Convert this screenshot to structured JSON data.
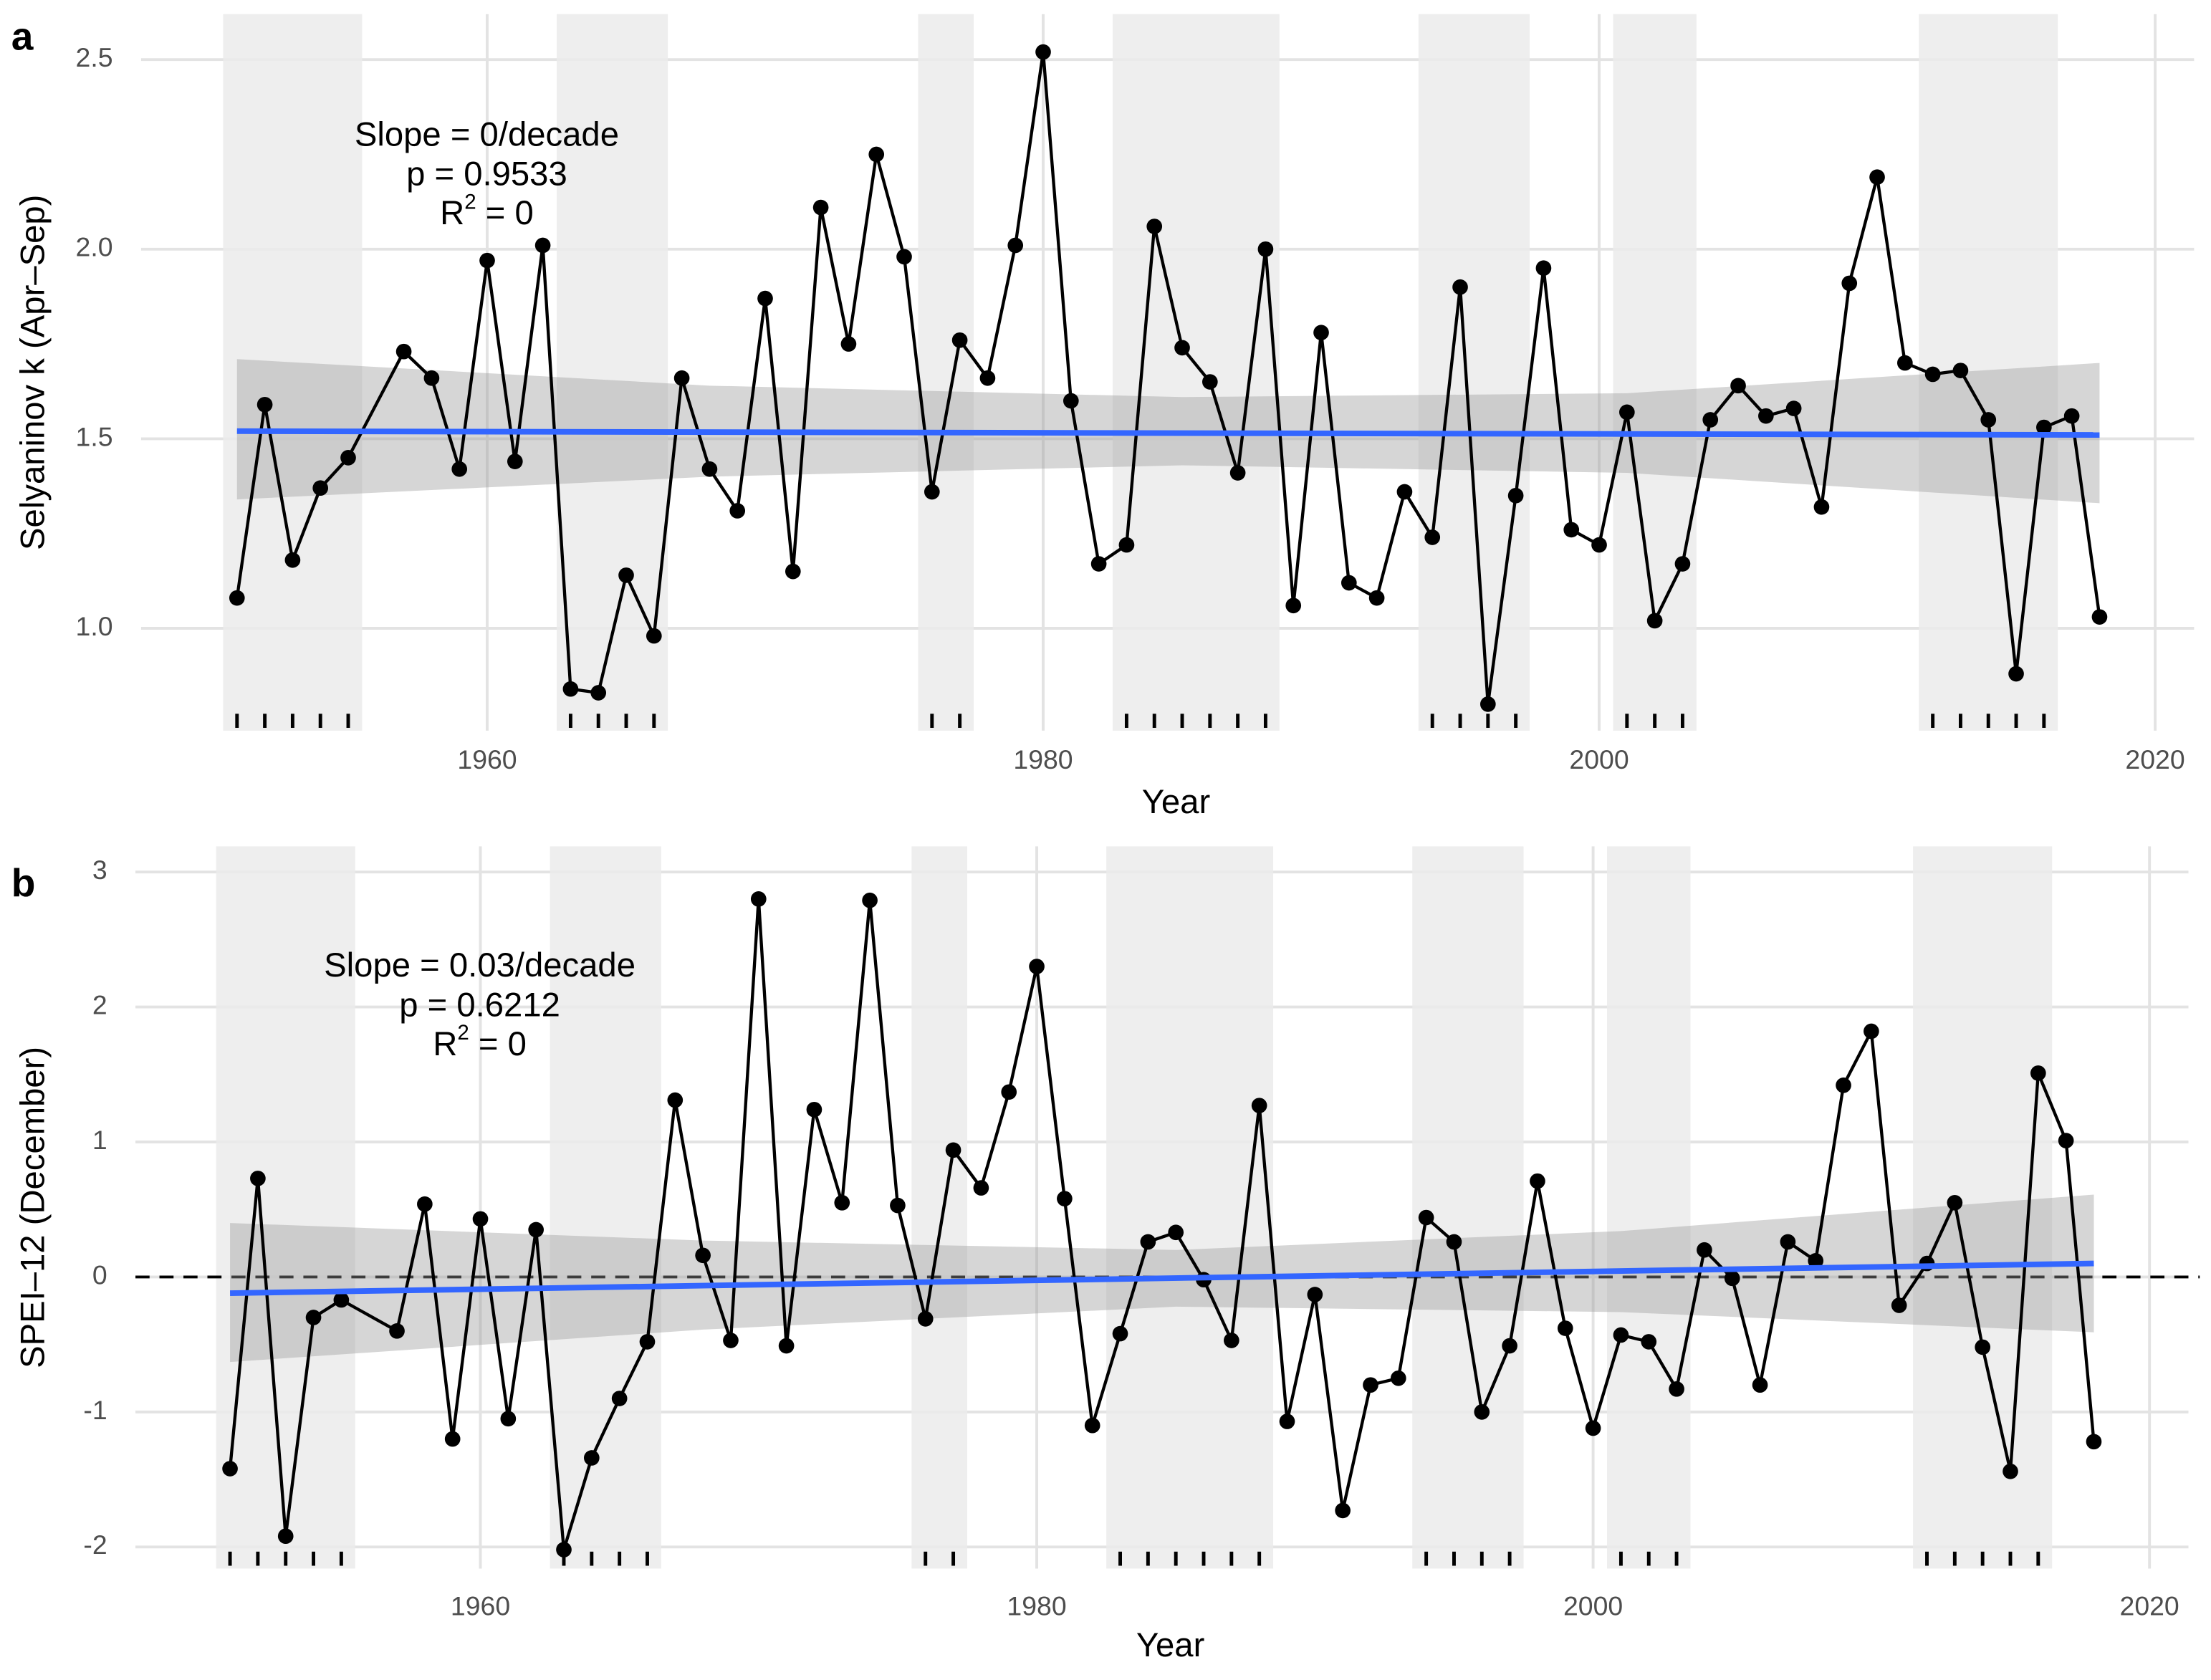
{
  "chart_data": [
    {
      "type": "line",
      "panel_label": "a",
      "xlabel": "Year",
      "ylabel": "Selyaninov k (Apr–Sep)",
      "x": [
        1951,
        1952,
        1953,
        1954,
        1955,
        1957,
        1958,
        1959,
        1960,
        1961,
        1962,
        1963,
        1964,
        1965,
        1966,
        1967,
        1968,
        1969,
        1970,
        1971,
        1972,
        1973,
        1974,
        1975,
        1976,
        1977,
        1978,
        1979,
        1980,
        1981,
        1982,
        1983,
        1984,
        1985,
        1986,
        1987,
        1988,
        1989,
        1990,
        1991,
        1992,
        1993,
        1994,
        1995,
        1996,
        1997,
        1998,
        1999,
        2000,
        2001,
        2002,
        2003,
        2004,
        2005,
        2006,
        2007,
        2008,
        2009,
        2010,
        2011,
        2012,
        2013,
        2014,
        2015,
        2016,
        2017,
        2018
      ],
      "values": [
        1.08,
        1.59,
        1.18,
        1.37,
        1.45,
        1.73,
        1.66,
        1.42,
        1.97,
        1.44,
        2.01,
        0.84,
        0.83,
        1.14,
        0.98,
        1.66,
        1.42,
        1.31,
        1.87,
        1.15,
        2.11,
        1.75,
        2.25,
        1.98,
        1.36,
        1.76,
        1.66,
        2.01,
        2.52,
        1.6,
        1.17,
        1.22,
        2.06,
        1.74,
        1.65,
        1.41,
        2.0,
        1.06,
        1.78,
        1.12,
        1.08,
        1.36,
        1.24,
        1.9,
        0.8,
        1.35,
        1.95,
        1.26,
        1.22,
        1.57,
        1.02,
        1.17,
        1.55,
        1.64,
        1.56,
        1.58,
        1.32,
        1.91,
        2.19,
        1.7,
        1.67,
        1.68,
        1.55,
        0.88,
        1.53,
        1.56,
        1.03
      ],
      "color": "#000000",
      "xlim": [
        1947.55,
        2021.4
      ],
      "ylim": [
        0.73,
        2.62
      ],
      "xticks": [
        1960,
        1980,
        2000,
        2020
      ],
      "yticks": [
        {
          "value": 1,
          "label": "1.0"
        },
        1.5,
        {
          "value": 2,
          "label": "2.0"
        },
        2.5
      ],
      "grid": true,
      "periods": [
        [
          1950.5,
          1955.5
        ],
        [
          1962.5,
          1966.5
        ],
        [
          1975.5,
          1977.5
        ],
        [
          1982.5,
          1988.5
        ],
        [
          1993.5,
          1997.5
        ],
        [
          2000.5,
          2003.5
        ],
        [
          2011.5,
          2016.5
        ]
      ],
      "fit": {
        "color": "#3366ff",
        "x": [
          1951,
          2018
        ],
        "values": [
          1.52,
          1.51
        ]
      },
      "ci": {
        "x": [
          1951,
          1968,
          1985,
          2001,
          2018
        ],
        "lower": [
          1.34,
          1.4,
          1.43,
          1.41,
          1.33
        ],
        "upper": [
          1.71,
          1.64,
          1.61,
          1.62,
          1.7
        ]
      },
      "annotation": {
        "lines": [
          "Slope = 0/decade",
          "p = 0.9533"
        ],
        "r2": [
          "R",
          "2",
          " = 0"
        ]
      }
    },
    {
      "type": "line",
      "panel_label": "b",
      "xlabel": "Year",
      "ylabel": "SPEI–12 (December)",
      "x": [
        1951,
        1952,
        1953,
        1954,
        1955,
        1957,
        1958,
        1959,
        1960,
        1961,
        1962,
        1963,
        1964,
        1965,
        1966,
        1967,
        1968,
        1969,
        1970,
        1971,
        1972,
        1973,
        1974,
        1975,
        1976,
        1977,
        1978,
        1979,
        1980,
        1981,
        1982,
        1983,
        1984,
        1985,
        1986,
        1987,
        1988,
        1989,
        1990,
        1991,
        1992,
        1993,
        1994,
        1995,
        1996,
        1997,
        1998,
        1999,
        2000,
        2001,
        2002,
        2003,
        2004,
        2005,
        2006,
        2007,
        2008,
        2009,
        2010,
        2011,
        2012,
        2013,
        2014,
        2015,
        2016,
        2017,
        2018
      ],
      "values": [
        -1.42,
        0.73,
        -1.92,
        -0.3,
        -0.17,
        -0.4,
        0.54,
        -1.2,
        0.43,
        -1.05,
        0.35,
        -2.02,
        -1.34,
        -0.9,
        -0.48,
        1.31,
        0.16,
        -0.47,
        2.8,
        -0.51,
        1.24,
        0.55,
        2.79,
        0.53,
        -0.31,
        0.94,
        0.66,
        1.37,
        2.3,
        0.58,
        -1.1,
        -0.42,
        0.26,
        0.33,
        -0.02,
        -0.47,
        1.27,
        -1.07,
        -0.13,
        -1.73,
        -0.8,
        -0.75,
        0.44,
        0.26,
        -1.0,
        -0.51,
        0.71,
        -0.38,
        -1.12,
        -0.43,
        -0.48,
        -0.83,
        0.2,
        -0.01,
        -0.8,
        0.26,
        0.12,
        1.42,
        1.82,
        -0.21,
        0.1,
        0.55,
        -0.52,
        -1.44,
        1.51,
        1.01,
        -1.22
      ],
      "color": "#000000",
      "xlim": [
        1947.6,
        2021.4
      ],
      "ylim": [
        -2.16,
        3.19
      ],
      "xticks": [
        1960,
        1980,
        2000,
        2020
      ],
      "yticks": [
        -2,
        -1,
        0,
        1,
        2,
        3
      ],
      "grid": true,
      "hline": 0,
      "periods": [
        [
          1950.5,
          1955.5
        ],
        [
          1962.5,
          1966.5
        ],
        [
          1975.5,
          1977.5
        ],
        [
          1982.5,
          1988.5
        ],
        [
          1993.5,
          1997.5
        ],
        [
          2000.5,
          2003.5
        ],
        [
          2011.5,
          2016.5
        ]
      ],
      "fit": {
        "color": "#3366ff",
        "x": [
          1951,
          2018
        ],
        "values": [
          -0.12,
          0.1
        ]
      },
      "ci": {
        "x": [
          1951,
          1968,
          1985,
          2001,
          2018
        ],
        "lower": [
          -0.63,
          -0.39,
          -0.22,
          -0.26,
          -0.41
        ],
        "upper": [
          0.4,
          0.27,
          0.2,
          0.34,
          0.61
        ]
      },
      "annotation": {
        "lines": [
          "Slope = 0.03/decade",
          "p = 0.6212"
        ],
        "r2": [
          "R",
          "2",
          " = 0"
        ]
      }
    }
  ]
}
